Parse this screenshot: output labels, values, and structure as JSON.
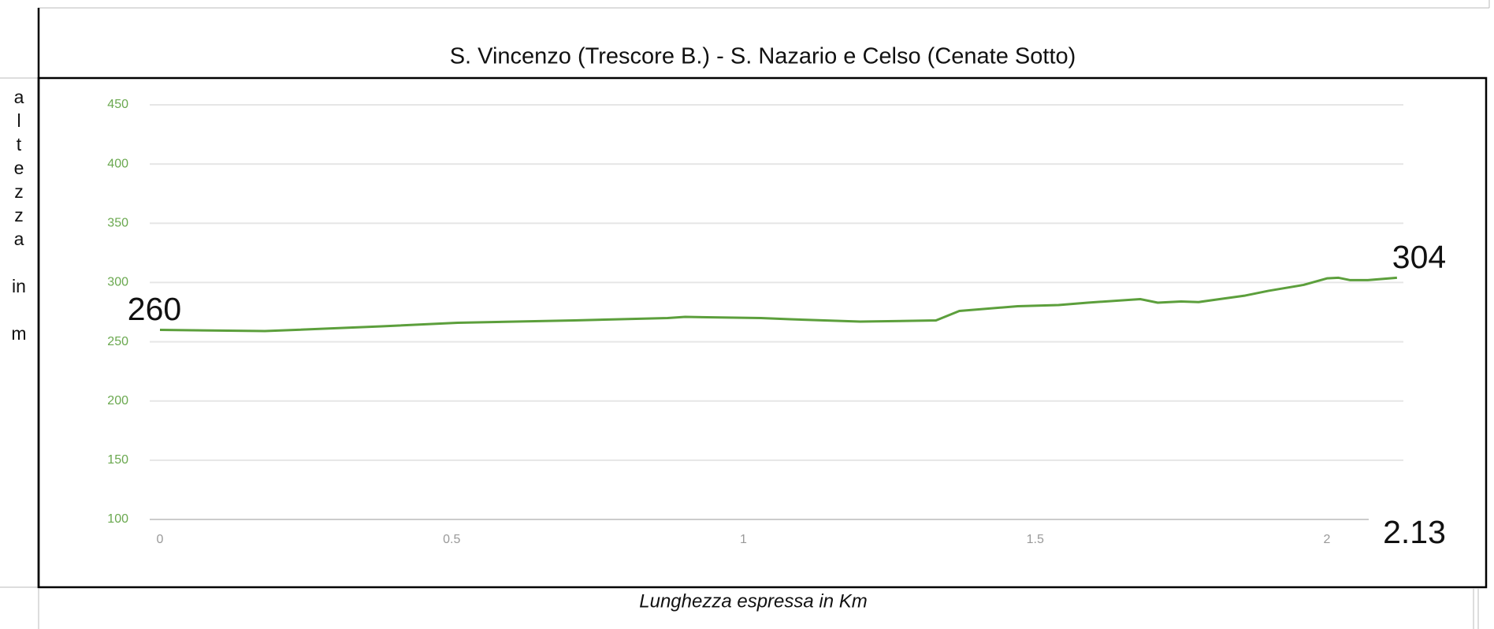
{
  "chart_data": {
    "type": "line",
    "title": "S. Vincenzo (Trescore B.)  -  S. Nazario e Celso (Cenate Sotto)",
    "y_label_lines": [
      "a",
      "l",
      "t",
      "e",
      "z",
      "z",
      "a",
      "in",
      "m"
    ],
    "x_label": "Lunghezza espressa in Km",
    "annotations": [
      "260",
      "304",
      "2.13"
    ],
    "x": [
      0,
      0.18,
      0.38,
      0.51,
      0.71,
      0.87,
      0.9,
      1.03,
      1.08,
      1.2,
      1.33,
      1.37,
      1.47,
      1.54,
      1.59,
      1.68,
      1.71,
      1.75,
      1.78,
      1.86,
      1.9,
      1.96,
      2.0,
      2.02,
      2.04,
      2.07,
      2.12
    ],
    "series": [
      {
        "color": "#5c9f3c",
        "values": [
          260,
          259,
          263,
          266,
          268,
          270,
          271,
          270,
          269,
          267,
          268,
          276,
          280,
          281,
          283,
          286,
          283,
          284,
          283.5,
          289,
          293,
          298,
          303.5,
          304,
          302,
          302,
          304
        ]
      }
    ],
    "xlim": [
      0,
      2.0
    ],
    "xticks": [
      0,
      0.5,
      1,
      1.5,
      2
    ],
    "ylim": [
      100,
      450
    ],
    "yticks": [
      100,
      150,
      200,
      250,
      300,
      350,
      400,
      450
    ],
    "grid": true,
    "ytick_color": "#6aa84f",
    "xtick_color": "#999999"
  }
}
